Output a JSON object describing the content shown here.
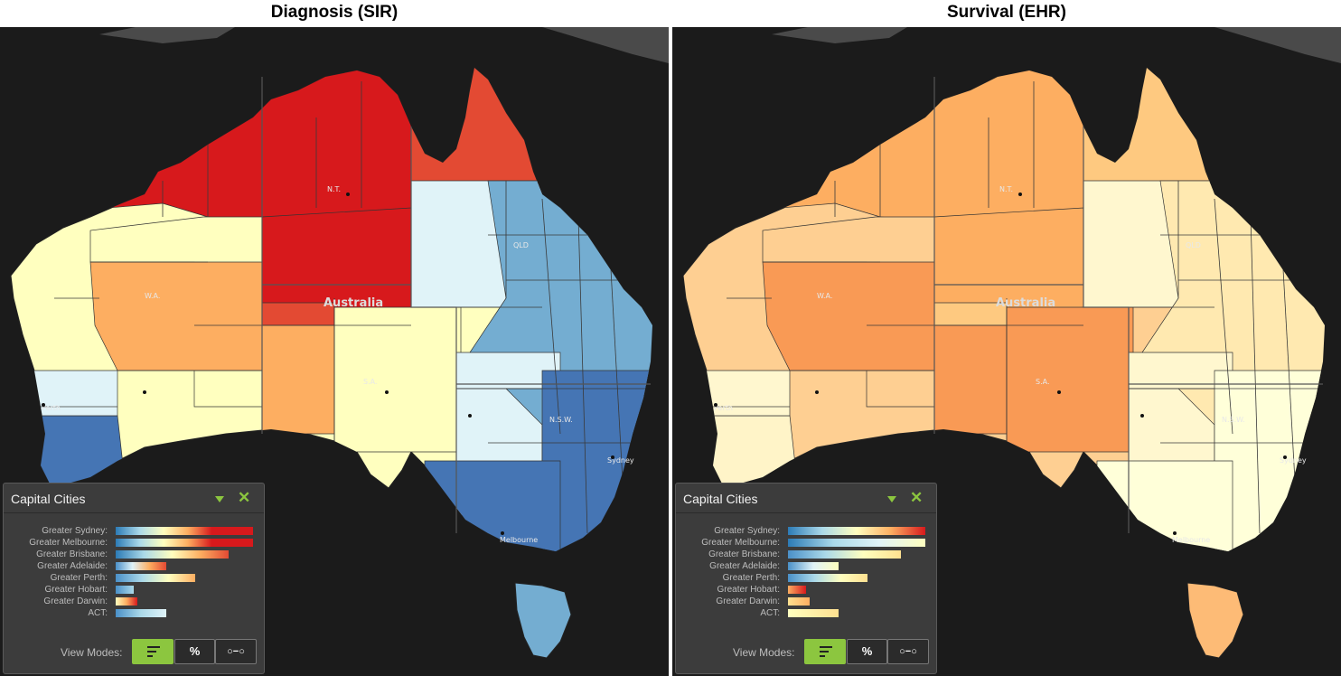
{
  "panels": [
    {
      "title": "Diagnosis (SIR)",
      "map": {
        "country_label": "Australia",
        "state_labels": [
          "N.T.",
          "W.A.",
          "QLD",
          "S.A.",
          "N.S.W."
        ],
        "city_labels": [
          "Perth",
          "Sydney",
          "Melbourne"
        ],
        "region_colors": {
          "north": "#d7191c",
          "north_east": "#e34a33",
          "central": "#fdae61",
          "west": "#ffffbf",
          "south_west": "#4575b4",
          "east_coast": "#74add1",
          "inland_east": "#e0f3f8",
          "south_east": "#4575b4",
          "sa": "#ffffbf",
          "tasmania": "#74add1"
        }
      },
      "legend": {
        "title": "Capital Cities",
        "collapse_icon": "triangle-down-icon",
        "close_icon": "close-icon",
        "rows": [
          {
            "label": "Greater Sydney:",
            "value": 1.0,
            "gradient": "linear-gradient(90deg,#2c7bb6,#abd9e9,#ffffbf,#fdae61,#d7191c 70%,#d7191c)"
          },
          {
            "label": "Greater Melbourne:",
            "value": 1.0,
            "gradient": "linear-gradient(90deg,#2c7bb6,#abd9e9,#ffffbf,#fdae61,#d7191c 70%,#d7191c)"
          },
          {
            "label": "Greater Brisbane:",
            "value": 0.82,
            "gradient": "linear-gradient(90deg,#2c7bb6,#abd9e9,#ffffbf,#fdae61,#e34a33)"
          },
          {
            "label": "Greater Adelaide:",
            "value": 0.37,
            "gradient": "linear-gradient(90deg,#4a90c8,#e0f3f8,#fdae61,#e34a33)"
          },
          {
            "label": "Greater Perth:",
            "value": 0.58,
            "gradient": "linear-gradient(90deg,#4a90c8,#abd9e9,#ffffbf,#fdae61)"
          },
          {
            "label": "Greater Hobart:",
            "value": 0.13,
            "gradient": "linear-gradient(90deg,#4a90c8,#abd9e9)"
          },
          {
            "label": "Greater Darwin:",
            "value": 0.16,
            "gradient": "linear-gradient(90deg,#ffffbf,#fdae61,#d7191c)"
          },
          {
            "label": "ACT:",
            "value": 0.37,
            "gradient": "linear-gradient(90deg,#4a90c8,#abd9e9,#e0f3f8)"
          }
        ],
        "view_modes_label": "View Modes:",
        "modes": [
          {
            "name": "bars",
            "icon": "bar-chart-icon",
            "label": "",
            "active": true
          },
          {
            "name": "percent",
            "icon": "percent-icon",
            "label": "%",
            "active": false
          },
          {
            "name": "range",
            "icon": "range-icon",
            "label": "○−○",
            "active": false
          }
        ]
      }
    },
    {
      "title": "Survival (EHR)",
      "map": {
        "country_label": "Australia",
        "state_labels": [
          "N.T.",
          "W.A.",
          "QLD",
          "S.A.",
          "N.S.W."
        ],
        "city_labels": [
          "Perth",
          "Sydney",
          "Melbourne"
        ],
        "region_colors": {
          "north": "#fdae61",
          "north_east": "#fec980",
          "central": "#f99a55",
          "west": "#fecf92",
          "south_west": "#fff4c8",
          "east_coast": "#ffe9b0",
          "inland_east": "#fff7cf",
          "south_east": "#ffffd9",
          "sa": "#f99a55",
          "tasmania": "#fdbb76"
        }
      },
      "legend": {
        "title": "Capital Cities",
        "collapse_icon": "triangle-down-icon",
        "close_icon": "close-icon",
        "rows": [
          {
            "label": "Greater Sydney:",
            "value": 1.0,
            "gradient": "linear-gradient(90deg,#2c7bb6,#abd9e9,#ffffbf,#fdae61,#d7191c)"
          },
          {
            "label": "Greater Melbourne:",
            "value": 1.0,
            "gradient": "linear-gradient(90deg,#2c7bb6,#abd9e9,#e0f3f8,#ffffbf)"
          },
          {
            "label": "Greater Brisbane:",
            "value": 0.82,
            "gradient": "linear-gradient(90deg,#4a90c8,#abd9e9,#ffffbf,#fee090)"
          },
          {
            "label": "Greater Adelaide:",
            "value": 0.37,
            "gradient": "linear-gradient(90deg,#4a90c8,#e0f3f8,#ffffbf)"
          },
          {
            "label": "Greater Perth:",
            "value": 0.58,
            "gradient": "linear-gradient(90deg,#4a90c8,#abd9e9,#ffffbf,#fee090)"
          },
          {
            "label": "Greater Hobart:",
            "value": 0.13,
            "gradient": "linear-gradient(90deg,#fdae61,#d7191c)"
          },
          {
            "label": "Greater Darwin:",
            "value": 0.16,
            "gradient": "linear-gradient(90deg,#fee090,#fdae61)"
          },
          {
            "label": "ACT:",
            "value": 0.37,
            "gradient": "linear-gradient(90deg,#ffffbf,#fee090)"
          }
        ],
        "view_modes_label": "View Modes:",
        "modes": [
          {
            "name": "bars",
            "icon": "bar-chart-icon",
            "label": "",
            "active": true
          },
          {
            "name": "percent",
            "icon": "percent-icon",
            "label": "%",
            "active": false
          },
          {
            "name": "range",
            "icon": "range-icon",
            "label": "○−○",
            "active": false
          }
        ]
      }
    }
  ]
}
